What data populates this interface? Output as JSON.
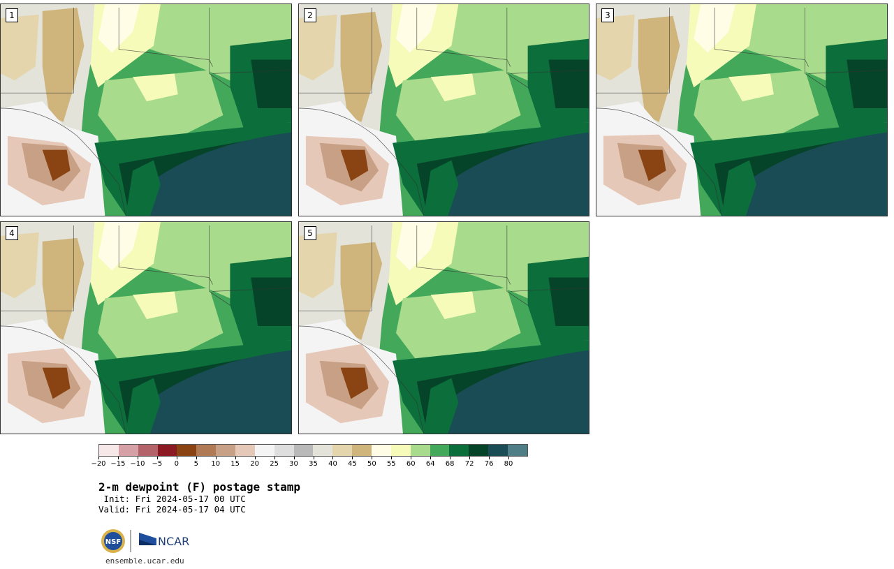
{
  "title": "2-m dewpoint (F) postage stamp",
  "init": " Init: Fri 2024-05-17 00 UTC",
  "valid": "Valid: Fri 2024-05-17 04 UTC",
  "site": "ensemble.ucar.edu",
  "logo": {
    "ncar_text": "NCAR",
    "nsf_text": "NSF"
  },
  "panels": [
    {
      "label": "1"
    },
    {
      "label": "2"
    },
    {
      "label": "3"
    },
    {
      "label": "4"
    },
    {
      "label": "5"
    }
  ],
  "colorbar": {
    "ticks": [
      "−20",
      "−15",
      "−10",
      "−5",
      "0",
      "5",
      "10",
      "15",
      "20",
      "25",
      "30",
      "35",
      "40",
      "45",
      "50",
      "55",
      "60",
      "64",
      "68",
      "72",
      "76",
      "80"
    ],
    "colors": [
      "#f6e8e8",
      "#d6a1a6",
      "#b3636a",
      "#8b1a22",
      "#8a4414",
      "#b07a55",
      "#c7a085",
      "#e6c8b8",
      "#f4f4f4",
      "#dedede",
      "#b9b9b9",
      "#e3e3da",
      "#e4d5ad",
      "#cfb47c",
      "#fffde6",
      "#f6fbba",
      "#a8dc8c",
      "#43a85a",
      "#0b6e3b",
      "#06442a",
      "#1a4c55",
      "#4f7e86"
    ]
  }
}
